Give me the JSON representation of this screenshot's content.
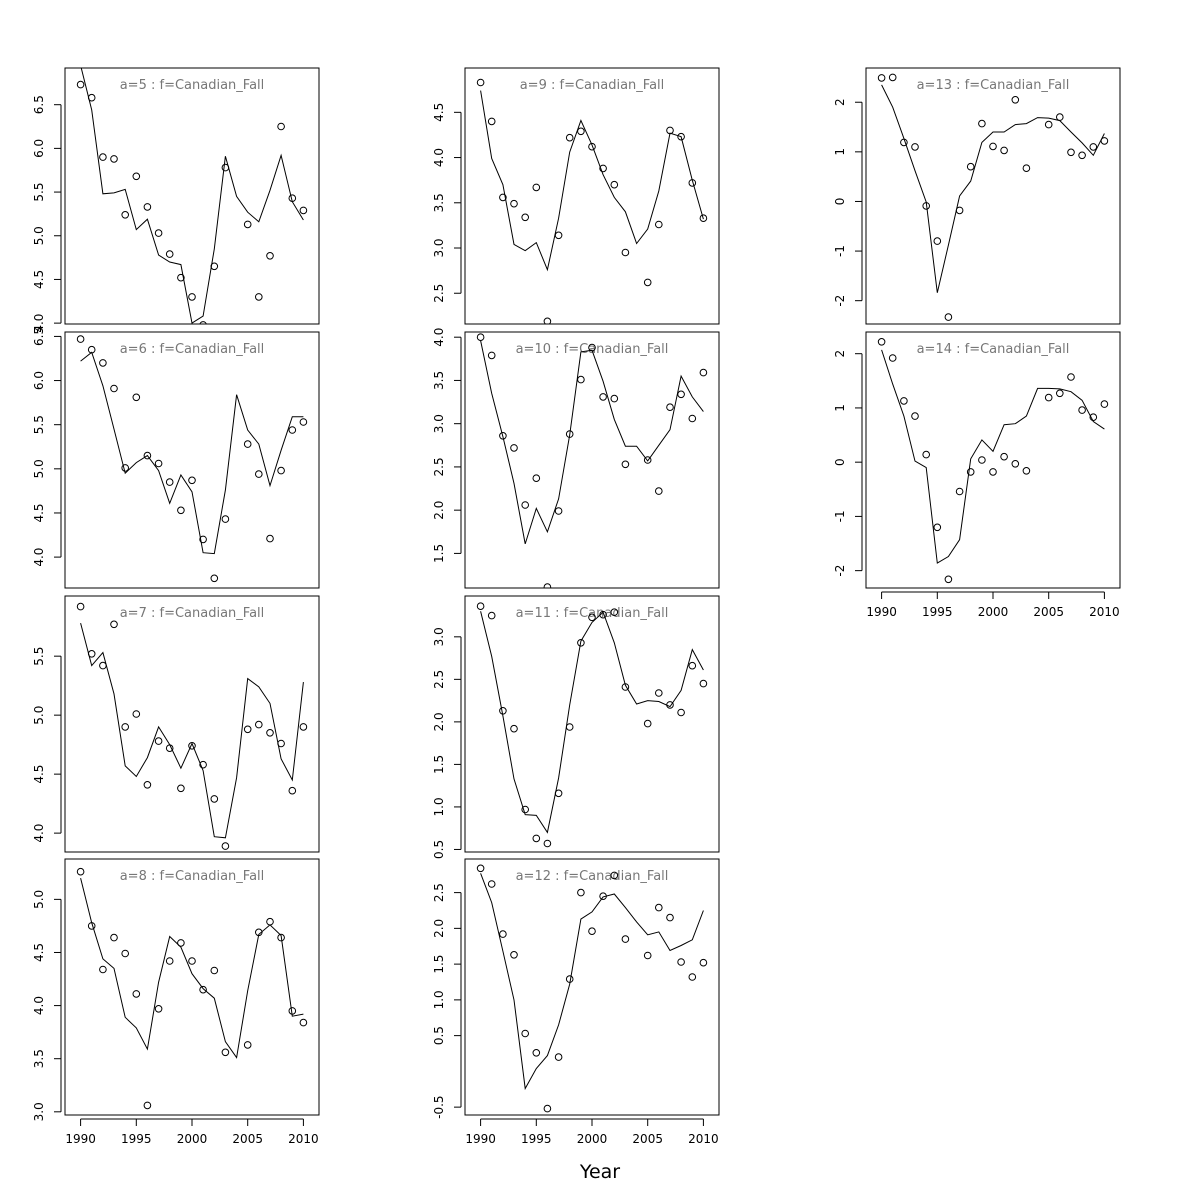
{
  "figure": {
    "xlabel": "Year"
  },
  "chart_data": [
    {
      "type": "scatter",
      "title": "a=5  :  f=Canadian_Fall",
      "grid": false,
      "xlim": [
        1988.6,
        2011.4
      ],
      "ylim": [
        3.99,
        6.92
      ],
      "yticks": [
        4.0,
        4.5,
        5.0,
        5.5,
        6.0,
        6.5
      ],
      "ytick_labels": [
        "4.0",
        "4.5",
        "5.0",
        "5.5",
        "6.0",
        "6.5"
      ],
      "x": [
        1990,
        1991,
        1992,
        1993,
        1994,
        1995,
        1996,
        1997,
        1998,
        1999,
        2000,
        2001,
        2002,
        2003,
        2004,
        2005,
        2006,
        2007,
        2008,
        2009,
        2010
      ],
      "series": [
        {
          "kind": "points",
          "values": [
            6.73,
            6.58,
            5.9,
            5.88,
            5.24,
            5.68,
            5.33,
            5.03,
            4.79,
            4.52,
            4.3,
            3.98,
            4.65,
            5.78,
            null,
            5.13,
            4.3,
            4.77,
            6.25,
            5.43,
            5.29
          ]
        },
        {
          "kind": "line",
          "values": [
            6.95,
            6.44,
            5.48,
            5.49,
            5.53,
            5.07,
            5.19,
            4.78,
            4.7,
            4.67,
            4.0,
            4.08,
            4.85,
            5.91,
            5.45,
            5.27,
            5.16,
            5.52,
            5.92,
            5.39,
            5.18
          ]
        }
      ]
    },
    {
      "type": "scatter",
      "title": "a=6  :  f=Canadian_Fall",
      "grid": false,
      "xlim": [
        1988.6,
        2011.4
      ],
      "ylim": [
        3.65,
        6.55
      ],
      "yticks": [
        4.0,
        4.5,
        5.0,
        5.5,
        6.0,
        6.5
      ],
      "ytick_labels": [
        "4.0",
        "4.5",
        "5.0",
        "5.5",
        "6.0",
        "6.5"
      ],
      "x": [
        1990,
        1991,
        1992,
        1993,
        1994,
        1995,
        1996,
        1997,
        1998,
        1999,
        2000,
        2001,
        2002,
        2003,
        2004,
        2005,
        2006,
        2007,
        2008,
        2009,
        2010
      ],
      "series": [
        {
          "kind": "points",
          "values": [
            6.47,
            6.35,
            6.2,
            5.91,
            5.01,
            5.81,
            5.15,
            5.06,
            4.85,
            4.53,
            4.87,
            4.2,
            3.76,
            4.43,
            null,
            5.28,
            4.94,
            4.21,
            4.98,
            5.44,
            5.53
          ]
        },
        {
          "kind": "line",
          "values": [
            6.22,
            6.32,
            5.94,
            5.45,
            4.95,
            5.07,
            5.15,
            4.98,
            4.61,
            4.93,
            4.74,
            4.05,
            4.04,
            4.76,
            5.84,
            5.44,
            5.28,
            4.81,
            5.21,
            5.59,
            5.59
          ]
        }
      ]
    },
    {
      "type": "scatter",
      "title": "a=7  :  f=Canadian_Fall",
      "grid": false,
      "xlim": [
        1988.6,
        2011.4
      ],
      "ylim": [
        3.84,
        6.01
      ],
      "yticks": [
        4.0,
        4.5,
        5.0,
        5.5
      ],
      "ytick_labels": [
        "4.0",
        "4.5",
        "5.0",
        "5.5"
      ],
      "x": [
        1990,
        1991,
        1992,
        1993,
        1994,
        1995,
        1996,
        1997,
        1998,
        1999,
        2000,
        2001,
        2002,
        2003,
        2004,
        2005,
        2006,
        2007,
        2008,
        2009,
        2010
      ],
      "series": [
        {
          "kind": "points",
          "values": [
            5.92,
            5.52,
            5.42,
            5.77,
            4.9,
            5.01,
            4.41,
            4.78,
            4.72,
            4.38,
            4.74,
            4.58,
            4.29,
            3.89,
            null,
            4.88,
            4.92,
            4.85,
            4.76,
            4.36,
            4.9
          ]
        },
        {
          "kind": "line",
          "values": [
            5.78,
            5.42,
            5.53,
            5.18,
            4.57,
            4.48,
            4.64,
            4.9,
            4.75,
            4.55,
            4.76,
            4.53,
            3.97,
            3.96,
            4.47,
            5.31,
            5.24,
            5.1,
            4.63,
            4.45,
            5.28
          ]
        }
      ]
    },
    {
      "type": "scatter",
      "title": "a=8  :  f=Canadian_Fall",
      "grid": false,
      "xlim": [
        1988.6,
        2011.4
      ],
      "ylim": [
        2.97,
        5.38
      ],
      "yticks": [
        3.0,
        3.5,
        4.0,
        4.5,
        5.0
      ],
      "ytick_labels": [
        "3.0",
        "3.5",
        "4.0",
        "4.5",
        "5.0"
      ],
      "x": [
        1990,
        1991,
        1992,
        1993,
        1994,
        1995,
        1996,
        1997,
        1998,
        1999,
        2000,
        2001,
        2002,
        2003,
        2004,
        2005,
        2006,
        2007,
        2008,
        2009,
        2010
      ],
      "series": [
        {
          "kind": "points",
          "values": [
            5.26,
            4.75,
            4.34,
            4.64,
            4.49,
            4.11,
            3.06,
            3.97,
            4.42,
            4.59,
            4.42,
            4.15,
            4.33,
            3.56,
            null,
            3.63,
            4.69,
            4.79,
            4.64,
            3.95,
            3.84
          ]
        },
        {
          "kind": "line",
          "values": [
            5.2,
            4.78,
            4.44,
            4.35,
            3.89,
            3.79,
            3.59,
            4.22,
            4.65,
            4.55,
            4.3,
            4.16,
            4.07,
            3.66,
            3.51,
            4.14,
            4.67,
            4.76,
            4.66,
            3.9,
            3.92
          ]
        }
      ]
    },
    {
      "type": "scatter",
      "title": "a=9  :  f=Canadian_Fall",
      "grid": false,
      "xlim": [
        1988.6,
        2011.4
      ],
      "ylim": [
        2.16,
        4.99
      ],
      "yticks": [
        2.5,
        3.0,
        3.5,
        4.0,
        4.5
      ],
      "ytick_labels": [
        "2.5",
        "3.0",
        "3.5",
        "4.0",
        "4.5"
      ],
      "x": [
        1990,
        1991,
        1992,
        1993,
        1994,
        1995,
        1996,
        1997,
        1998,
        1999,
        2000,
        2001,
        2002,
        2003,
        2004,
        2005,
        2006,
        2007,
        2008,
        2009,
        2010
      ],
      "series": [
        {
          "kind": "points",
          "values": [
            4.83,
            4.4,
            3.56,
            3.49,
            3.34,
            3.67,
            2.19,
            3.14,
            4.22,
            4.29,
            4.12,
            3.88,
            3.7,
            2.95,
            null,
            2.62,
            3.26,
            4.3,
            4.23,
            3.72,
            3.33
          ]
        },
        {
          "kind": "line",
          "values": [
            4.74,
            3.99,
            3.7,
            3.04,
            2.97,
            3.06,
            2.76,
            3.33,
            4.06,
            4.41,
            4.14,
            3.81,
            3.56,
            3.4,
            3.05,
            3.21,
            3.63,
            4.27,
            4.23,
            3.75,
            3.32
          ]
        }
      ]
    },
    {
      "type": "scatter",
      "title": "a=10  :  f=Canadian_Fall",
      "grid": false,
      "xlim": [
        1988.6,
        2011.4
      ],
      "ylim": [
        1.1,
        4.06
      ],
      "yticks": [
        1.5,
        2.0,
        2.5,
        3.0,
        3.5,
        4.0
      ],
      "ytick_labels": [
        "1.5",
        "2.0",
        "2.5",
        "3.0",
        "3.5",
        "4.0"
      ],
      "x": [
        1990,
        1991,
        1992,
        1993,
        1994,
        1995,
        1996,
        1997,
        1998,
        1999,
        2000,
        2001,
        2002,
        2003,
        2004,
        2005,
        2006,
        2007,
        2008,
        2009,
        2010
      ],
      "series": [
        {
          "kind": "points",
          "values": [
            4.0,
            3.79,
            2.86,
            2.72,
            2.06,
            2.37,
            1.11,
            1.99,
            2.88,
            3.51,
            3.88,
            3.31,
            3.29,
            2.53,
            null,
            2.58,
            2.22,
            3.19,
            3.34,
            3.06,
            3.59
          ]
        },
        {
          "kind": "line",
          "values": [
            3.96,
            3.35,
            2.85,
            2.31,
            1.61,
            2.02,
            1.75,
            2.13,
            2.87,
            3.83,
            3.85,
            3.49,
            3.05,
            2.74,
            2.74,
            2.57,
            2.75,
            2.93,
            3.55,
            3.31,
            3.14
          ]
        }
      ]
    },
    {
      "type": "scatter",
      "title": "a=11  :  f=Canadian_Fall",
      "grid": false,
      "xlim": [
        1988.6,
        2011.4
      ],
      "ylim": [
        0.47,
        3.48
      ],
      "yticks": [
        0.5,
        1.0,
        1.5,
        2.0,
        2.5,
        3.0
      ],
      "ytick_labels": [
        "0.5",
        "1.0",
        "1.5",
        "2.0",
        "2.5",
        "3.0"
      ],
      "x": [
        1990,
        1991,
        1992,
        1993,
        1994,
        1995,
        1996,
        1997,
        1998,
        1999,
        2000,
        2001,
        2002,
        2003,
        2004,
        2005,
        2006,
        2007,
        2008,
        2009,
        2010
      ],
      "series": [
        {
          "kind": "points",
          "values": [
            3.36,
            3.25,
            2.13,
            1.92,
            0.97,
            0.63,
            0.57,
            1.16,
            1.94,
            2.93,
            3.23,
            3.26,
            3.29,
            2.41,
            null,
            1.98,
            2.34,
            2.2,
            2.11,
            2.66,
            2.45
          ]
        },
        {
          "kind": "line",
          "values": [
            3.3,
            2.77,
            2.07,
            1.33,
            0.91,
            0.9,
            0.7,
            1.34,
            2.2,
            2.95,
            3.17,
            3.29,
            2.93,
            2.43,
            2.21,
            2.25,
            2.24,
            2.18,
            2.37,
            2.85,
            2.61
          ]
        }
      ]
    },
    {
      "type": "scatter",
      "title": "a=12  :  f=Canadian_Fall",
      "grid": false,
      "xlim": [
        1988.6,
        2011.4
      ],
      "ylim": [
        -0.61,
        2.97
      ],
      "yticks": [
        -0.5,
        0.5,
        1.0,
        1.5,
        2.0,
        2.5
      ],
      "ytick_labels": [
        "-0.5",
        "0.5",
        "1.0",
        "1.5",
        "2.0",
        "2.5"
      ],
      "x": [
        1990,
        1991,
        1992,
        1993,
        1994,
        1995,
        1996,
        1997,
        1998,
        1999,
        2000,
        2001,
        2002,
        2003,
        2004,
        2005,
        2006,
        2007,
        2008,
        2009,
        2010
      ],
      "series": [
        {
          "kind": "points",
          "values": [
            2.84,
            2.62,
            1.92,
            1.63,
            0.53,
            0.26,
            -0.52,
            0.2,
            1.29,
            2.5,
            1.96,
            2.45,
            2.74,
            1.85,
            null,
            1.62,
            2.29,
            2.15,
            1.53,
            1.32,
            1.52
          ]
        },
        {
          "kind": "line",
          "values": [
            2.77,
            2.36,
            1.68,
            1.0,
            -0.24,
            0.04,
            0.22,
            0.65,
            1.22,
            2.13,
            2.23,
            2.44,
            2.48,
            2.29,
            2.09,
            1.91,
            1.95,
            1.69,
            1.76,
            1.84,
            2.25
          ]
        }
      ]
    },
    {
      "type": "scatter",
      "title": "a=13  :  f=Canadian_Fall",
      "grid": false,
      "xlim": [
        1988.6,
        2011.4
      ],
      "ylim": [
        -2.47,
        2.69
      ],
      "yticks": [
        -2,
        -1,
        0,
        1,
        2
      ],
      "ytick_labels": [
        "-2",
        "-1",
        "0",
        "1",
        "2"
      ],
      "x": [
        1990,
        1991,
        1992,
        1993,
        1994,
        1995,
        1996,
        1997,
        1998,
        1999,
        2000,
        2001,
        2002,
        2003,
        2004,
        2005,
        2006,
        2007,
        2008,
        2009,
        2010
      ],
      "series": [
        {
          "kind": "points",
          "values": [
            2.49,
            2.5,
            1.19,
            1.1,
            -0.09,
            -0.8,
            -2.33,
            -0.18,
            0.7,
            1.57,
            1.11,
            1.03,
            2.05,
            0.67,
            null,
            1.55,
            1.7,
            0.99,
            0.93,
            1.1,
            1.22
          ]
        },
        {
          "kind": "line",
          "values": [
            2.35,
            1.9,
            1.27,
            0.62,
            -0.01,
            -1.84,
            -0.88,
            0.11,
            0.41,
            1.19,
            1.4,
            1.4,
            1.55,
            1.57,
            1.69,
            1.68,
            1.63,
            1.4,
            1.18,
            0.93,
            1.37
          ]
        }
      ]
    },
    {
      "type": "scatter",
      "title": "a=14  :  f=Canadian_Fall",
      "grid": false,
      "xlim": [
        1988.6,
        2011.4
      ],
      "ylim": [
        -2.32,
        2.4
      ],
      "yticks": [
        -2,
        -1,
        0,
        1,
        2
      ],
      "ytick_labels": [
        "-2",
        "-1",
        "0",
        "1",
        "2"
      ],
      "x": [
        1990,
        1991,
        1992,
        1993,
        1994,
        1995,
        1996,
        1997,
        1998,
        1999,
        2000,
        2001,
        2002,
        2003,
        2004,
        2005,
        2006,
        2007,
        2008,
        2009,
        2010
      ],
      "series": [
        {
          "kind": "points",
          "values": [
            2.22,
            1.92,
            1.13,
            0.85,
            0.14,
            -1.2,
            -2.16,
            -0.54,
            -0.18,
            0.04,
            -0.18,
            0.1,
            -0.03,
            -0.16,
            null,
            1.19,
            1.27,
            1.57,
            0.96,
            0.83,
            1.07
          ]
        },
        {
          "kind": "line",
          "values": [
            2.07,
            1.44,
            0.85,
            0.02,
            -0.1,
            -1.86,
            -1.74,
            -1.43,
            0.06,
            0.41,
            0.2,
            0.69,
            0.71,
            0.85,
            1.36,
            1.36,
            1.35,
            1.3,
            1.14,
            0.75,
            0.61
          ]
        }
      ]
    }
  ],
  "xaxis": {
    "ticks": [
      1990,
      1995,
      2000,
      2005,
      2010
    ],
    "tick_labels": [
      "1990",
      "1995",
      "2000",
      "2005",
      "2010"
    ],
    "shown_on_panels": [
      3,
      7,
      9
    ]
  }
}
